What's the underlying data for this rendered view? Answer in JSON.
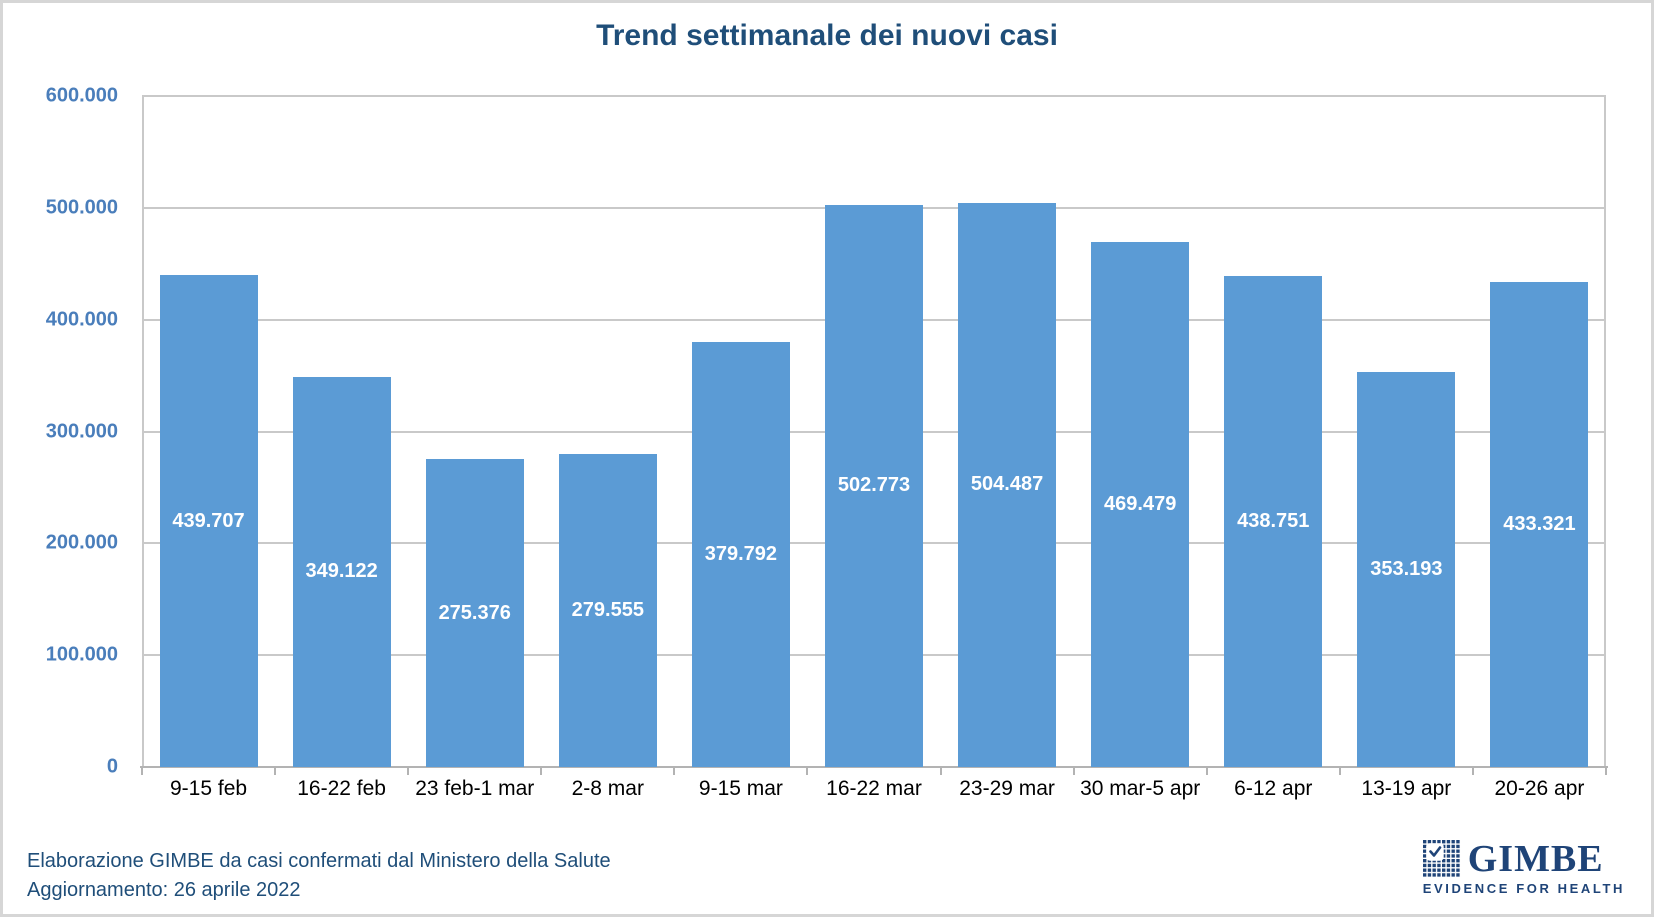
{
  "chart_data": {
    "type": "bar",
    "title": "Trend settimanale dei nuovi casi",
    "categories": [
      "9-15 feb",
      "16-22 feb",
      "23 feb-1 mar",
      "2-8 mar",
      "9-15 mar",
      "16-22 mar",
      "23-29 mar",
      "30 mar-5 apr",
      "6-12 apr",
      "13-19 apr",
      "20-26 apr"
    ],
    "values": [
      439707,
      349122,
      275376,
      279555,
      379792,
      502773,
      504487,
      469479,
      438751,
      353193,
      433321
    ],
    "value_labels": [
      "439.707",
      "349.122",
      "275.376",
      "279.555",
      "379.792",
      "502.773",
      "504.487",
      "469.479",
      "438.751",
      "353.193",
      "433.321"
    ],
    "xlabel": "",
    "ylabel": "",
    "ylim": [
      0,
      600000
    ],
    "ytick_interval": 100000,
    "ytick_labels": [
      "0",
      "100.000",
      "200.000",
      "300.000",
      "400.000",
      "500.000",
      "600.000"
    ],
    "grid": "horizontal",
    "legend": "none",
    "bar_color": "#5B9BD5",
    "bar_label_color": "#FFFFFF"
  },
  "footer": {
    "line1": "Elaborazione GIMBE da casi confermati dal Ministero della Salute",
    "line2": "Aggiornamento: 26 aprile 2022"
  },
  "logo": {
    "icon": "gimbe-grid-check-icon",
    "name": "GIMBE",
    "tagline": "EVIDENCE FOR HEALTH"
  },
  "colors": {
    "title": "#1F4E79",
    "y_axis_labels": "#4A7EBB",
    "x_axis_labels": "#000000",
    "gridline": "#C9C9C9",
    "axis_line": "#B3B3B3",
    "footer_text": "#1F4E79",
    "logo_navy": "#1F4478",
    "background": "#FFFFFF"
  }
}
